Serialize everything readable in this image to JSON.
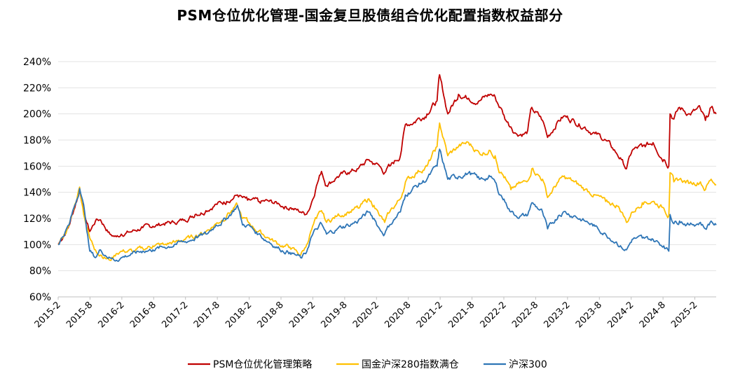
{
  "chart_data": {
    "type": "line",
    "title": "PSM仓位优化管理-国金复旦股债组合优化配置指数权益部分",
    "xlabel": "",
    "ylabel": "",
    "ylim": [
      0.6,
      2.4
    ],
    "y_ticks": [
      "60%",
      "80%",
      "100%",
      "120%",
      "140%",
      "160%",
      "180%",
      "200%",
      "220%",
      "240%"
    ],
    "x_ticks": [
      "2015-2",
      "2015-8",
      "2016-2",
      "2016-8",
      "2017-2",
      "2017-8",
      "2018-2",
      "2018-8",
      "2019-2",
      "2019-8",
      "2020-2",
      "2020-8",
      "2021-2",
      "2021-8",
      "2022-2",
      "2022-8",
      "2023-2",
      "2023-8",
      "2024-2",
      "2024-8",
      "2025-2"
    ],
    "grid": true,
    "legend_position": "bottom",
    "x": [
      2015.08,
      2015.25,
      2015.42,
      2015.5,
      2015.58,
      2015.67,
      2015.75,
      2015.9,
      2016.0,
      2016.08,
      2016.25,
      2016.42,
      2016.58,
      2016.75,
      2016.92,
      2017.08,
      2017.25,
      2017.42,
      2017.58,
      2017.75,
      2017.92,
      2018.0,
      2018.08,
      2018.25,
      2018.42,
      2018.58,
      2018.75,
      2018.92,
      2019.0,
      2019.08,
      2019.17,
      2019.25,
      2019.33,
      2019.5,
      2019.67,
      2019.83,
      2020.0,
      2020.08,
      2020.17,
      2020.25,
      2020.33,
      2020.5,
      2020.58,
      2020.75,
      2020.92,
      2021.08,
      2021.12,
      2021.25,
      2021.42,
      2021.58,
      2021.75,
      2021.92,
      2022.0,
      2022.08,
      2022.17,
      2022.25,
      2022.33,
      2022.5,
      2022.58,
      2022.75,
      2022.83,
      2023.0,
      2023.08,
      2023.25,
      2023.42,
      2023.58,
      2023.75,
      2023.92,
      2024.0,
      2024.08,
      2024.17,
      2024.33,
      2024.5,
      2024.67,
      2024.75,
      2024.77,
      2024.83,
      2024.92,
      2025.08,
      2025.25,
      2025.33,
      2025.42,
      2025.5
    ],
    "series": [
      {
        "name": "PSM仓位优化管理策略",
        "color": "#c00000",
        "values": [
          1.0,
          1.14,
          1.42,
          1.23,
          1.1,
          1.18,
          1.19,
          1.08,
          1.06,
          1.08,
          1.1,
          1.13,
          1.14,
          1.16,
          1.17,
          1.19,
          1.23,
          1.26,
          1.31,
          1.33,
          1.38,
          1.36,
          1.34,
          1.33,
          1.33,
          1.31,
          1.28,
          1.25,
          1.23,
          1.3,
          1.45,
          1.56,
          1.45,
          1.52,
          1.55,
          1.58,
          1.65,
          1.62,
          1.6,
          1.55,
          1.6,
          1.68,
          1.92,
          1.95,
          2.0,
          2.1,
          2.3,
          2.0,
          2.15,
          2.12,
          2.1,
          2.15,
          2.13,
          2.05,
          1.95,
          1.9,
          1.85,
          1.85,
          2.05,
          1.95,
          1.82,
          1.95,
          1.98,
          1.95,
          1.9,
          1.85,
          1.8,
          1.7,
          1.65,
          1.58,
          1.72,
          1.75,
          1.78,
          1.65,
          1.6,
          2.0,
          1.96,
          2.05,
          2.0,
          2.04,
          1.95,
          2.05,
          2.0
        ]
      },
      {
        "name": "国金沪深280指数满仓",
        "color": "#ffc000",
        "values": [
          1.0,
          1.14,
          1.44,
          1.2,
          1.05,
          0.96,
          0.92,
          0.88,
          0.93,
          0.95,
          0.95,
          0.97,
          0.99,
          1.0,
          1.02,
          1.04,
          1.06,
          1.1,
          1.16,
          1.22,
          1.3,
          1.2,
          1.18,
          1.1,
          1.05,
          1.0,
          0.98,
          0.92,
          0.98,
          1.1,
          1.2,
          1.26,
          1.17,
          1.22,
          1.25,
          1.28,
          1.35,
          1.3,
          1.22,
          1.17,
          1.25,
          1.35,
          1.48,
          1.55,
          1.6,
          1.75,
          1.93,
          1.68,
          1.75,
          1.78,
          1.7,
          1.72,
          1.68,
          1.55,
          1.5,
          1.42,
          1.45,
          1.48,
          1.58,
          1.5,
          1.36,
          1.48,
          1.52,
          1.48,
          1.42,
          1.38,
          1.33,
          1.3,
          1.25,
          1.17,
          1.25,
          1.32,
          1.33,
          1.28,
          1.22,
          1.55,
          1.48,
          1.5,
          1.47,
          1.48,
          1.42,
          1.5,
          1.46
        ]
      },
      {
        "name": "沪深300",
        "color": "#2e75b6",
        "values": [
          1.0,
          1.15,
          1.43,
          1.25,
          0.95,
          0.9,
          0.96,
          0.9,
          0.88,
          0.9,
          0.93,
          0.95,
          0.96,
          0.98,
          1.0,
          1.02,
          1.05,
          1.08,
          1.15,
          1.2,
          1.3,
          1.15,
          1.15,
          1.08,
          1.02,
          0.97,
          0.94,
          0.9,
          0.93,
          1.05,
          1.12,
          1.16,
          1.08,
          1.12,
          1.15,
          1.18,
          1.25,
          1.2,
          1.12,
          1.08,
          1.15,
          1.25,
          1.38,
          1.45,
          1.5,
          1.6,
          1.73,
          1.5,
          1.52,
          1.55,
          1.5,
          1.52,
          1.48,
          1.38,
          1.32,
          1.25,
          1.22,
          1.22,
          1.32,
          1.25,
          1.12,
          1.22,
          1.25,
          1.22,
          1.18,
          1.14,
          1.08,
          1.02,
          0.98,
          0.96,
          1.04,
          1.05,
          1.04,
          0.99,
          0.95,
          1.23,
          1.16,
          1.18,
          1.15,
          1.17,
          1.12,
          1.18,
          1.15
        ]
      }
    ]
  }
}
